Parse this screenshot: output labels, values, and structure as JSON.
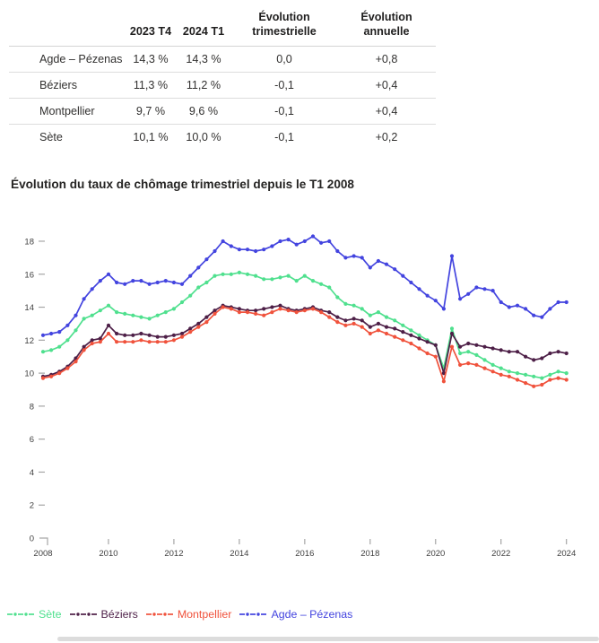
{
  "table": {
    "columns": [
      "",
      "2023 T4",
      "2024 T1",
      "Évolution trimestrielle",
      "Évolution annuelle"
    ],
    "rows": [
      {
        "label": "Agde – Pézenas",
        "values": [
          "14,3 %",
          "14,3 %",
          "0,0",
          "+0,8"
        ]
      },
      {
        "label": "Béziers",
        "values": [
          "11,3 %",
          "11,2 %",
          "-0,1",
          "+0,4"
        ]
      },
      {
        "label": "Montpellier",
        "values": [
          "9,7 %",
          "9,6 %",
          "-0,1",
          "+0,4"
        ]
      },
      {
        "label": "Sète",
        "values": [
          "10,1 %",
          "10,0 %",
          "-0,1",
          "+0,2"
        ]
      }
    ]
  },
  "chart_data": {
    "type": "line",
    "title": "Évolution du taux de chômage trimestriel depuis le T1 2008",
    "x_unit": "quarter",
    "x_start": "2008 T1",
    "x_end": "2024 T1",
    "x_tick_labels": [
      "2008",
      "2010",
      "2012",
      "2014",
      "2016",
      "2018",
      "2020",
      "2022",
      "2024"
    ],
    "y_tick_labels": [
      "0",
      "2",
      "4",
      "6",
      "8",
      "10",
      "12",
      "14",
      "16",
      "18"
    ],
    "ylim": [
      0,
      19
    ],
    "grid": false,
    "legend_position": "bottom",
    "series": [
      {
        "name": "Sète",
        "color": "#4fe08e",
        "values": [
          11.3,
          11.4,
          11.6,
          12.0,
          12.6,
          13.3,
          13.5,
          13.8,
          14.1,
          13.7,
          13.6,
          13.5,
          13.4,
          13.3,
          13.5,
          13.7,
          13.9,
          14.3,
          14.7,
          15.2,
          15.5,
          15.9,
          16.0,
          16.0,
          16.1,
          16.0,
          15.9,
          15.7,
          15.7,
          15.8,
          15.9,
          15.6,
          15.9,
          15.6,
          15.4,
          15.2,
          14.6,
          14.2,
          14.1,
          13.9,
          13.5,
          13.7,
          13.4,
          13.2,
          12.9,
          12.6,
          12.3,
          12.0,
          11.7,
          10.3,
          12.7,
          11.2,
          11.3,
          11.1,
          10.8,
          10.5,
          10.3,
          10.1,
          10.0,
          9.9,
          9.8,
          9.7,
          9.9,
          10.1,
          10.0
        ]
      },
      {
        "name": "Béziers",
        "color": "#4d1f47",
        "values": [
          9.8,
          9.9,
          10.1,
          10.4,
          10.9,
          11.6,
          12.0,
          12.1,
          12.9,
          12.4,
          12.3,
          12.3,
          12.4,
          12.3,
          12.2,
          12.2,
          12.3,
          12.4,
          12.7,
          13.0,
          13.4,
          13.8,
          14.1,
          14.0,
          13.9,
          13.8,
          13.8,
          13.9,
          14.0,
          14.1,
          13.9,
          13.8,
          13.9,
          14.0,
          13.8,
          13.7,
          13.4,
          13.2,
          13.3,
          13.2,
          12.8,
          13.0,
          12.8,
          12.7,
          12.5,
          12.3,
          12.1,
          11.9,
          11.7,
          10.0,
          12.4,
          11.6,
          11.8,
          11.7,
          11.6,
          11.5,
          11.4,
          11.3,
          11.3,
          11.0,
          10.8,
          10.9,
          11.2,
          11.3,
          11.2
        ]
      },
      {
        "name": "Montpellier",
        "color": "#f0523c",
        "values": [
          9.7,
          9.8,
          10.0,
          10.3,
          10.7,
          11.4,
          11.8,
          11.9,
          12.4,
          11.9,
          11.9,
          11.9,
          12.0,
          11.9,
          11.9,
          11.9,
          12.0,
          12.2,
          12.5,
          12.8,
          13.1,
          13.6,
          14.0,
          13.9,
          13.7,
          13.7,
          13.6,
          13.5,
          13.7,
          13.9,
          13.8,
          13.7,
          13.8,
          13.9,
          13.7,
          13.4,
          13.1,
          12.9,
          13.0,
          12.8,
          12.4,
          12.6,
          12.4,
          12.2,
          12.0,
          11.8,
          11.5,
          11.2,
          11.0,
          9.5,
          11.6,
          10.5,
          10.6,
          10.5,
          10.3,
          10.1,
          9.9,
          9.8,
          9.6,
          9.4,
          9.2,
          9.3,
          9.6,
          9.7,
          9.6
        ]
      },
      {
        "name": "Agde – Pézenas",
        "color": "#4344df",
        "values": [
          12.3,
          12.4,
          12.5,
          12.9,
          13.5,
          14.5,
          15.1,
          15.6,
          16.0,
          15.5,
          15.4,
          15.6,
          15.6,
          15.4,
          15.5,
          15.6,
          15.5,
          15.4,
          15.9,
          16.4,
          16.9,
          17.4,
          18.0,
          17.7,
          17.5,
          17.5,
          17.4,
          17.5,
          17.7,
          18.0,
          18.1,
          17.8,
          18.0,
          18.3,
          17.9,
          18.0,
          17.4,
          17.0,
          17.1,
          17.0,
          16.4,
          16.8,
          16.6,
          16.3,
          15.9,
          15.5,
          15.1,
          14.7,
          14.4,
          13.9,
          17.1,
          14.5,
          14.8,
          15.2,
          15.1,
          15.0,
          14.3,
          14.0,
          14.1,
          13.9,
          13.5,
          13.4,
          13.9,
          14.3,
          14.3
        ]
      }
    ],
    "axis_color": "#404040",
    "tick_color": "#a6a6a6"
  }
}
